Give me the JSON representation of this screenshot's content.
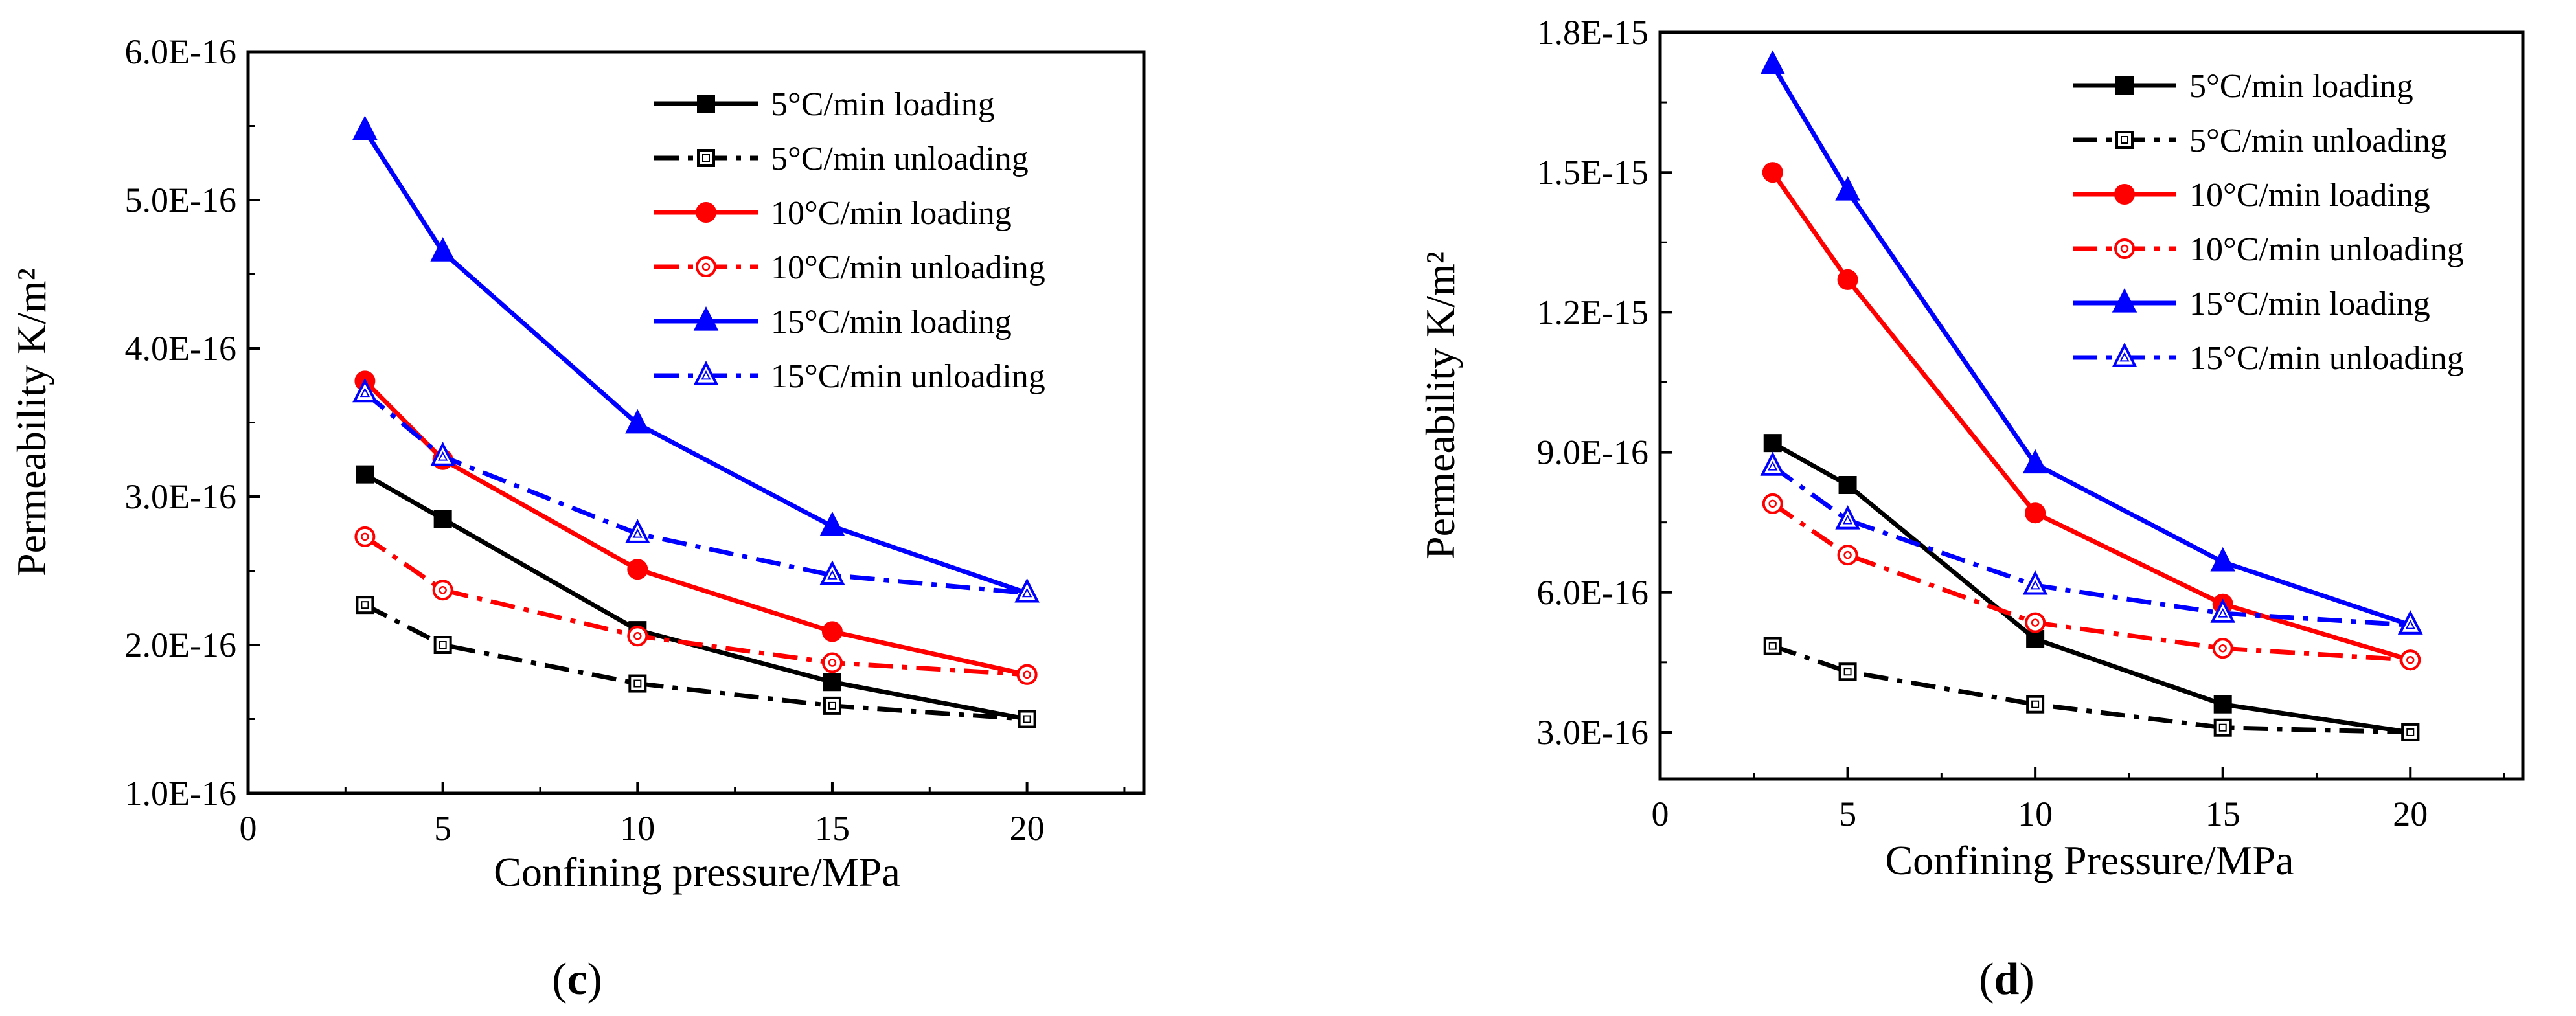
{
  "chart_data": [
    {
      "type": "line",
      "caption": "(c)",
      "caption_letter": "c",
      "xlabel": "Confining pressure/MPa",
      "ylabel": "Permeability K/m²",
      "xlim": [
        0,
        23
      ],
      "ylim": [
        1e-16,
        6e-16
      ],
      "x_ticks": [
        0,
        5,
        10,
        15,
        20
      ],
      "x_tick_labels": [
        "0",
        "5",
        "10",
        "15",
        "20"
      ],
      "y_ticks": [
        1e-16,
        2e-16,
        3e-16,
        4e-16,
        5e-16,
        6e-16
      ],
      "y_tick_labels": [
        "1.0E-16",
        "2.0E-16",
        "3.0E-16",
        "4.0E-16",
        "5.0E-16",
        "6.0E-16"
      ],
      "legend_position": "top-right",
      "grid": false,
      "x": [
        3,
        5,
        10,
        15,
        20
      ],
      "series": [
        {
          "name": "5°C/min loading",
          "color": "#000000",
          "dash": "solid",
          "marker": "square",
          "filled": true,
          "values": [
            3.15e-16,
            2.85e-16,
            2.1e-16,
            1.75e-16,
            1.5e-16
          ]
        },
        {
          "name": "5°C/min unloading",
          "color": "#000000",
          "dash": "dashdot",
          "marker": "square",
          "filled": false,
          "values": [
            2.27e-16,
            2e-16,
            1.74e-16,
            1.59e-16,
            1.5e-16
          ]
        },
        {
          "name": "10°C/min loading",
          "color": "#ff0000",
          "dash": "solid",
          "marker": "circle",
          "filled": true,
          "values": [
            3.78e-16,
            3.25e-16,
            2.51e-16,
            2.09e-16,
            1.8e-16
          ]
        },
        {
          "name": "10°C/min unloading",
          "color": "#ff0000",
          "dash": "dashdot",
          "marker": "circle",
          "filled": false,
          "values": [
            2.73e-16,
            2.37e-16,
            2.06e-16,
            1.88e-16,
            1.8e-16
          ]
        },
        {
          "name": "15°C/min loading",
          "color": "#0000ff",
          "dash": "solid",
          "marker": "triangle",
          "filled": true,
          "values": [
            5.47e-16,
            4.65e-16,
            3.49e-16,
            2.8e-16,
            2.35e-16
          ]
        },
        {
          "name": "15°C/min unloading",
          "color": "#0000ff",
          "dash": "dashdot",
          "marker": "triangle",
          "filled": false,
          "values": [
            3.7e-16,
            3.27e-16,
            2.75e-16,
            2.47e-16,
            2.35e-16
          ]
        }
      ]
    },
    {
      "type": "line",
      "caption": "(d)",
      "caption_letter": "d",
      "xlabel": "Confining Pressure/MPa",
      "ylabel": "Permeability K/m²",
      "xlim": [
        0,
        23
      ],
      "ylim": [
        2e-16,
        1.8e-15
      ],
      "x_ticks": [
        0,
        5,
        10,
        15,
        20
      ],
      "x_tick_labels": [
        "0",
        "5",
        "10",
        "15",
        "20"
      ],
      "y_ticks": [
        3e-16,
        6e-16,
        9e-16,
        1.2e-15,
        1.5e-15,
        1.8e-15
      ],
      "y_tick_labels": [
        "3.0E-16",
        "6.0E-16",
        "9.0E-16",
        "1.2E-15",
        "1.5E-15",
        "1.8E-15"
      ],
      "legend_position": "top-right",
      "grid": false,
      "x": [
        3,
        5,
        10,
        15,
        20
      ],
      "series": [
        {
          "name": "5°C/min loading",
          "color": "#000000",
          "dash": "solid",
          "marker": "square",
          "filled": true,
          "values": [
            9.2e-16,
            8.3e-16,
            5e-16,
            3.6e-16,
            3e-16
          ]
        },
        {
          "name": "5°C/min unloading",
          "color": "#000000",
          "dash": "dashdot",
          "marker": "square",
          "filled": false,
          "values": [
            4.85e-16,
            4.3e-16,
            3.6e-16,
            3.1e-16,
            3e-16
          ]
        },
        {
          "name": "10°C/min loading",
          "color": "#ff0000",
          "dash": "solid",
          "marker": "circle",
          "filled": true,
          "values": [
            1.5e-15,
            1.27e-15,
            7.7e-16,
            5.75e-16,
            4.55e-16
          ]
        },
        {
          "name": "10°C/min unloading",
          "color": "#ff0000",
          "dash": "dashdot",
          "marker": "circle",
          "filled": false,
          "values": [
            7.9e-16,
            6.8e-16,
            5.35e-16,
            4.8e-16,
            4.55e-16
          ]
        },
        {
          "name": "15°C/min loading",
          "color": "#0000ff",
          "dash": "solid",
          "marker": "triangle",
          "filled": true,
          "values": [
            1.73e-15,
            1.46e-15,
            8.75e-16,
            6.65e-16,
            5.3e-16
          ]
        },
        {
          "name": "15°C/min unloading",
          "color": "#0000ff",
          "dash": "dashdot",
          "marker": "triangle",
          "filled": false,
          "values": [
            8.7e-16,
            7.55e-16,
            6.15e-16,
            5.55e-16,
            5.3e-16
          ]
        }
      ]
    }
  ]
}
